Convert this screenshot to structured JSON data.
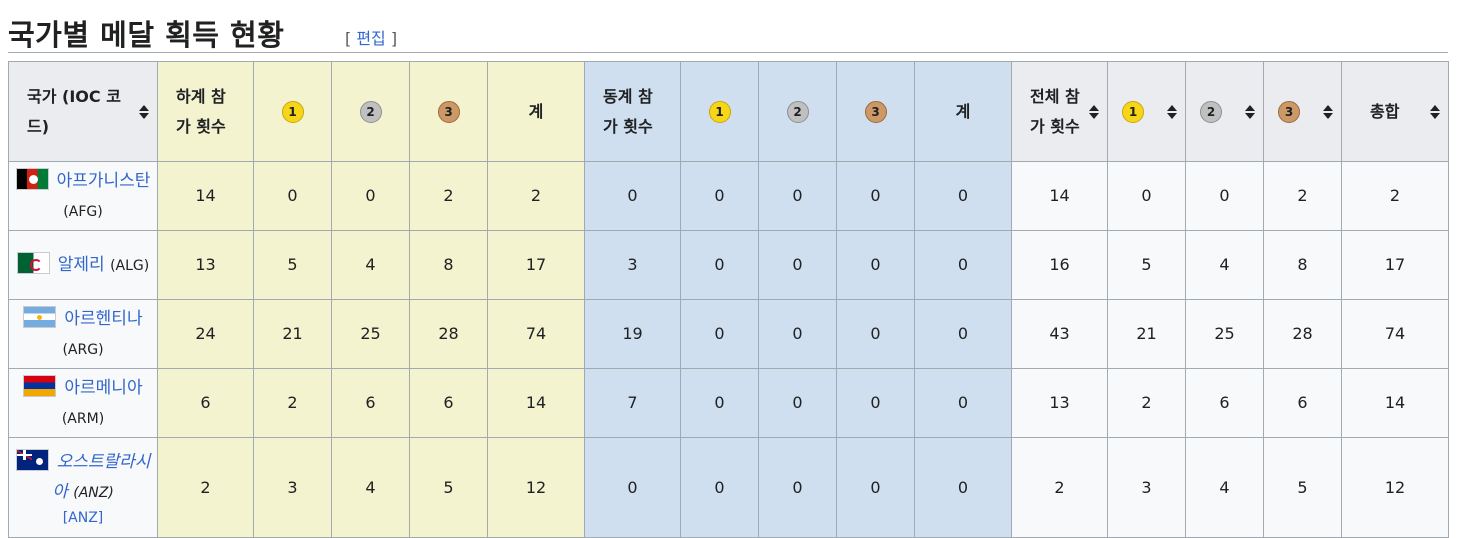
{
  "section": {
    "title": "국가별 메달 획득 현황",
    "edit_open": "[ ",
    "edit_label": "편집",
    "edit_close": " ]"
  },
  "headers": {
    "nation": "국가 (IOC 코드)",
    "summer_games": "하계 참가 횟수",
    "summer_total": "계",
    "winter_games": "동계 참가 횟수",
    "winter_total": "계",
    "all_games": "전체 참가 횟수",
    "grand_total": "총합",
    "gold": "1",
    "silver": "2",
    "bronze": "3"
  },
  "colors": {
    "summer_bg": "#f3f3d0",
    "winter_bg": "#cfdff0",
    "header_bg": "#eaecf0",
    "link": "#3366cc",
    "gold": "#f7d617",
    "silver": "#c0c0c0",
    "bronze": "#cc9966"
  },
  "rows": [
    {
      "flag": "afghanistan-flag",
      "name": "아프가니스탄",
      "code": "(AFG)",
      "summer": [
        "14",
        "0",
        "0",
        "2",
        "2"
      ],
      "winter": [
        "0",
        "0",
        "0",
        "0",
        "0"
      ],
      "total": [
        "14",
        "0",
        "0",
        "2",
        "2"
      ]
    },
    {
      "flag": "algeria-flag",
      "name": "알제리",
      "code": "(ALG)",
      "summer": [
        "13",
        "5",
        "4",
        "8",
        "17"
      ],
      "winter": [
        "3",
        "0",
        "0",
        "0",
        "0"
      ],
      "total": [
        "16",
        "5",
        "4",
        "8",
        "17"
      ]
    },
    {
      "flag": "argentina-flag",
      "name": "아르헨티나",
      "code": "(ARG)",
      "summer": [
        "24",
        "21",
        "25",
        "28",
        "74"
      ],
      "winter": [
        "19",
        "0",
        "0",
        "0",
        "0"
      ],
      "total": [
        "43",
        "21",
        "25",
        "28",
        "74"
      ]
    },
    {
      "flag": "armenia-flag",
      "name": "아르메니아",
      "code": "(ARM)",
      "summer": [
        "6",
        "2",
        "6",
        "6",
        "14"
      ],
      "winter": [
        "7",
        "0",
        "0",
        "0",
        "0"
      ],
      "total": [
        "13",
        "2",
        "6",
        "6",
        "14"
      ]
    },
    {
      "flag": "australasia-flag",
      "name": "오스트랄라시아",
      "code": "(ANZ)",
      "sub_link": "[ANZ]",
      "summer": [
        "2",
        "3",
        "4",
        "5",
        "12"
      ],
      "winter": [
        "0",
        "0",
        "0",
        "0",
        "0"
      ],
      "total": [
        "2",
        "3",
        "4",
        "5",
        "12"
      ]
    }
  ]
}
